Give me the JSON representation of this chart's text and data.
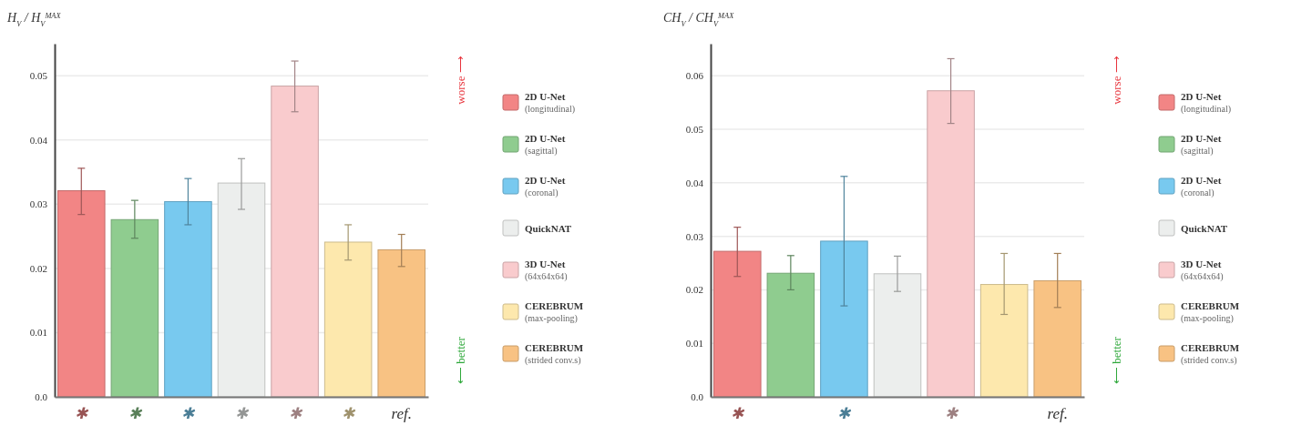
{
  "chart_data": [
    {
      "type": "bar",
      "ylabel": "H$_{V}$ / H$_{V}$$^{MAX}$",
      "categories": [
        "✱",
        "✱",
        "✱",
        "✱",
        "✱",
        "✱",
        "ref."
      ],
      "ylim": [
        0,
        0.055
      ],
      "yticks": [
        {
          "value": 0,
          "label": "0.0"
        },
        0.01,
        0.02,
        0.03,
        0.04,
        0.05
      ],
      "grid": "y",
      "legend": "right",
      "annotations": [
        "worse ⟶",
        "⟵ better"
      ],
      "series": [
        {
          "name": "2D U-Net (longitudinal)",
          "color": "#f28585",
          "values": [
            0.0321,
            null,
            null,
            null,
            null,
            null,
            null
          ],
          "errors": [
            [
              0.0284,
              0.0356
            ],
            null,
            null,
            null,
            null,
            null,
            null
          ]
        },
        {
          "name": "2D U-Net (sagittal)",
          "color": "#8fcc8f",
          "values": [
            null,
            0.0276,
            null,
            null,
            null,
            null,
            null
          ],
          "errors": [
            null,
            [
              0.0247,
              0.0306
            ],
            null,
            null,
            null,
            null,
            null
          ]
        },
        {
          "name": "2D U-Net (coronal)",
          "color": "#78c9ef",
          "values": [
            null,
            null,
            0.0304,
            null,
            null,
            null,
            null
          ],
          "errors": [
            null,
            null,
            [
              0.0268,
              0.034
            ],
            null,
            null,
            null,
            null
          ]
        },
        {
          "name": "QuickNAT",
          "color": "#eceeed",
          "values": [
            null,
            null,
            null,
            0.0333,
            null,
            null,
            null
          ],
          "errors": [
            null,
            null,
            null,
            [
              0.0292,
              0.0371
            ],
            null,
            null,
            null
          ]
        },
        {
          "name": "3D U-Net (64x64x64)",
          "color": "#f9cbcd",
          "values": [
            null,
            null,
            null,
            null,
            0.0484,
            null,
            null
          ],
          "errors": [
            null,
            null,
            null,
            null,
            [
              0.0444,
              0.0523
            ],
            null,
            null
          ]
        },
        {
          "name": "CEREBRUM (max-pooling)",
          "color": "#fde8ad",
          "values": [
            null,
            null,
            null,
            null,
            null,
            0.0241,
            null
          ],
          "errors": [
            null,
            null,
            null,
            null,
            null,
            [
              0.0213,
              0.0268
            ],
            null
          ]
        },
        {
          "name": "CEREBRUM (strided conv.s)",
          "color": "#f8c283",
          "values": [
            null,
            null,
            null,
            null,
            null,
            null,
            0.0229
          ],
          "errors": [
            null,
            null,
            null,
            null,
            null,
            null,
            [
              0.0203,
              0.0253
            ]
          ]
        }
      ]
    },
    {
      "type": "bar",
      "ylabel": "CH$_{V}$ / CH$_{V}$$^{MAX}$",
      "categories": [
        "✱",
        null,
        "✱",
        null,
        "✱",
        null,
        "ref."
      ],
      "ylim": [
        0,
        0.066
      ],
      "yticks": [
        {
          "value": 0,
          "label": "0.0"
        },
        0.01,
        0.02,
        0.03,
        0.04,
        0.05,
        0.06
      ],
      "grid": "y",
      "legend": "right",
      "annotations": [
        "worse ⟶",
        "⟵ better"
      ],
      "series": [
        {
          "name": "2D U-Net (longitudinal)",
          "color": "#f28585",
          "values": [
            0.0272,
            null,
            null,
            null,
            null,
            null,
            null
          ],
          "errors": [
            [
              0.0225,
              0.0317
            ],
            null,
            null,
            null,
            null,
            null,
            null
          ]
        },
        {
          "name": "2D U-Net (sagittal)",
          "color": "#8fcc8f",
          "values": [
            null,
            0.0231,
            null,
            null,
            null,
            null,
            null
          ],
          "errors": [
            null,
            [
              0.02,
              0.0264
            ],
            null,
            null,
            null,
            null,
            null
          ]
        },
        {
          "name": "2D U-Net (coronal)",
          "color": "#78c9ef",
          "values": [
            null,
            null,
            0.0291,
            null,
            null,
            null,
            null
          ],
          "errors": [
            null,
            null,
            [
              0.017,
              0.0412
            ],
            null,
            null,
            null,
            null
          ]
        },
        {
          "name": "QuickNAT",
          "color": "#eceeed",
          "values": [
            null,
            null,
            null,
            0.023,
            null,
            null,
            null
          ],
          "errors": [
            null,
            null,
            null,
            [
              0.0197,
              0.0263
            ],
            null,
            null,
            null
          ]
        },
        {
          "name": "3D U-Net (64x64x64)",
          "color": "#f9cbcd",
          "values": [
            null,
            null,
            null,
            null,
            0.0572,
            null,
            null
          ],
          "errors": [
            null,
            null,
            null,
            null,
            [
              0.0511,
              0.0632
            ],
            null,
            null
          ]
        },
        {
          "name": "CEREBRUM (max-pooling)",
          "color": "#fde8ad",
          "values": [
            null,
            null,
            null,
            null,
            null,
            0.021,
            null
          ],
          "errors": [
            null,
            null,
            null,
            null,
            null,
            [
              0.0154,
              0.0268
            ],
            null
          ]
        },
        {
          "name": "CEREBRUM (strided conv.s)",
          "color": "#f8c283",
          "values": [
            null,
            null,
            null,
            null,
            null,
            null,
            0.0217
          ],
          "errors": [
            null,
            null,
            null,
            null,
            null,
            null,
            [
              0.0167,
              0.0268
            ]
          ]
        }
      ]
    }
  ]
}
